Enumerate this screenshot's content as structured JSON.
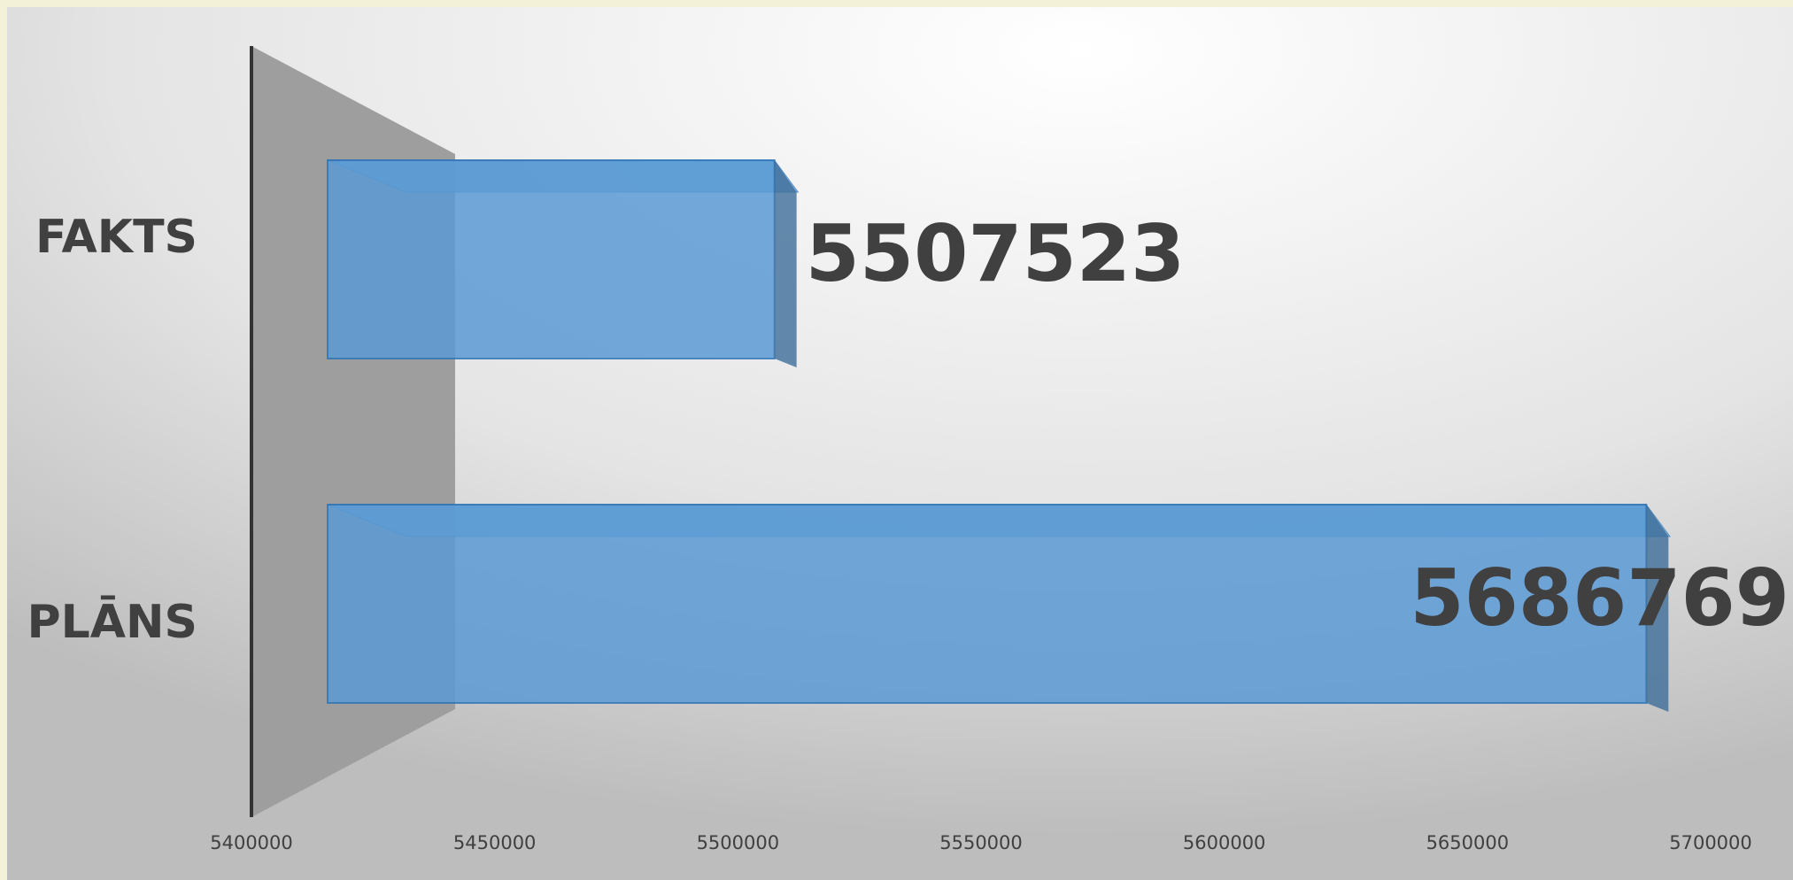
{
  "chart_data": {
    "type": "bar3d_horizontal",
    "categories": [
      "FAKTS",
      "PLĀNS"
    ],
    "values": [
      5507523,
      5686769
    ],
    "color": "#5b9bd5",
    "xlim": [
      5400000,
      5700000
    ],
    "xticks": [
      5400000,
      5450000,
      5500000,
      5550000,
      5600000,
      5650000,
      5700000
    ]
  }
}
